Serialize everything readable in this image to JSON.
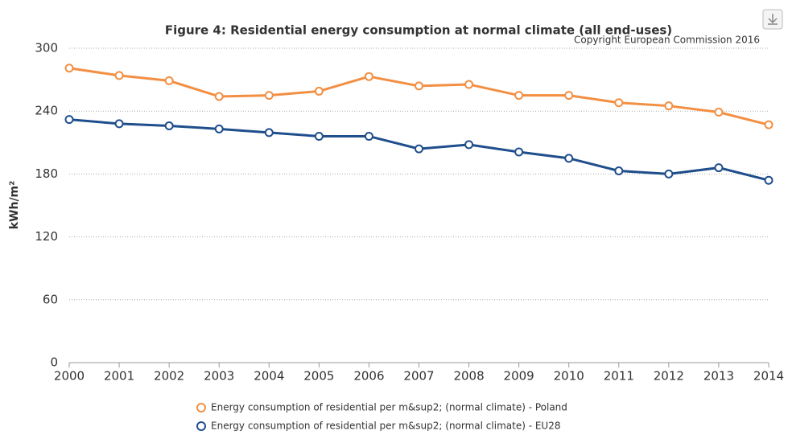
{
  "chart_data": {
    "type": "line",
    "title": "Figure 4: Residential energy consumption at normal climate (all end-uses)",
    "subtitle": "Copyright European Commission 2016",
    "y_label": "kWh/m²",
    "categories": [
      "2000",
      "2001",
      "2002",
      "2003",
      "2004",
      "2005",
      "2006",
      "2007",
      "2008",
      "2009",
      "2010",
      "2011",
      "2012",
      "2013",
      "2014"
    ],
    "series": [
      {
        "name": "Energy consumption of residential per m&sup2; (normal climate) - Poland",
        "color": "#f28f43",
        "values": [
          281,
          274,
          269,
          254,
          255,
          259,
          273,
          264,
          265.5,
          255,
          255,
          248,
          245,
          239,
          227
        ]
      },
      {
        "name": "Energy consumption of residential per m&sup2; (normal climate) - EU28",
        "color": "#1f4e8c",
        "values": [
          232,
          228,
          226,
          223,
          219.5,
          216,
          216,
          204,
          208,
          201,
          195,
          183,
          180,
          186,
          174
        ]
      }
    ],
    "ylim": [
      0,
      300
    ],
    "yticks": [
      0,
      60,
      120,
      180,
      240,
      300
    ],
    "grid": true,
    "legend": "bottom"
  }
}
